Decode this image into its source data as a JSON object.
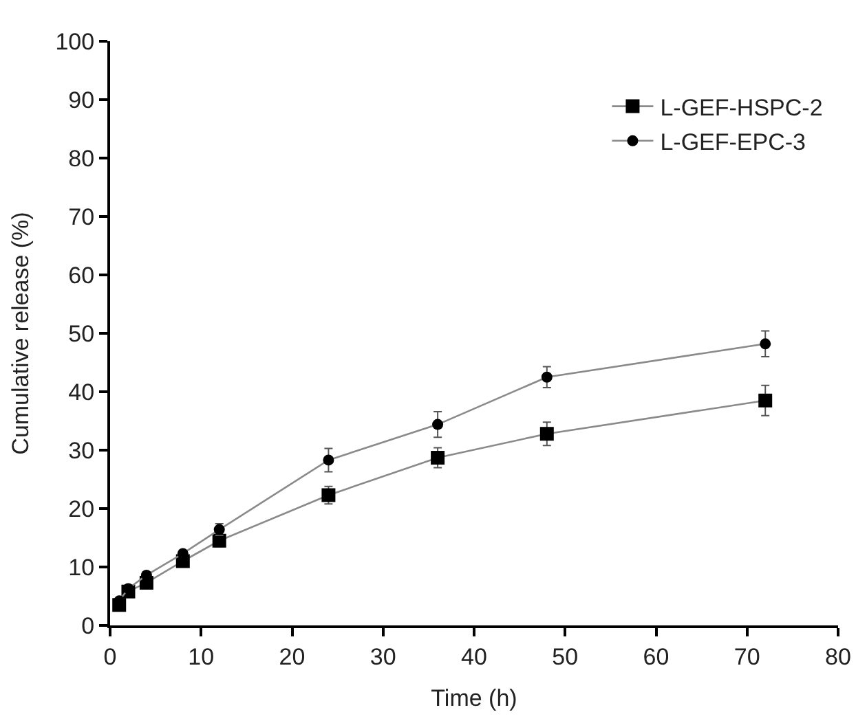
{
  "chart_data": {
    "type": "line",
    "xlabel": "Time (h)",
    "ylabel": "Cumulative release (%)",
    "x": [
      1,
      2,
      4,
      8,
      12,
      24,
      36,
      48,
      72
    ],
    "series": [
      {
        "name": "L-GEF-HSPC-2",
        "color": "#000000",
        "marker": "square",
        "values": [
          3.5,
          5.8,
          7.3,
          11,
          14.5,
          22.3,
          28.7,
          32.8,
          38.5
        ],
        "errors": [
          null,
          null,
          null,
          null,
          1,
          1.5,
          1.7,
          2,
          2.6
        ]
      },
      {
        "name": "L-GEF-EPC-3",
        "color": "#000000",
        "marker": "circle",
        "values": [
          4.2,
          6.3,
          8.6,
          12.3,
          16.4,
          28.3,
          34.4,
          42.5,
          48.2
        ],
        "errors": [
          null,
          null,
          null,
          null,
          1,
          2,
          2.2,
          1.8,
          2.2
        ]
      }
    ],
    "xlim": [
      0,
      80
    ],
    "xticks": [
      0,
      10,
      20,
      30,
      40,
      50,
      60,
      70,
      80
    ],
    "ylim": [
      0,
      100
    ],
    "yticks": [
      0,
      10,
      20,
      30,
      40,
      50,
      60,
      70,
      80,
      90,
      100
    ],
    "legend": "top right"
  }
}
